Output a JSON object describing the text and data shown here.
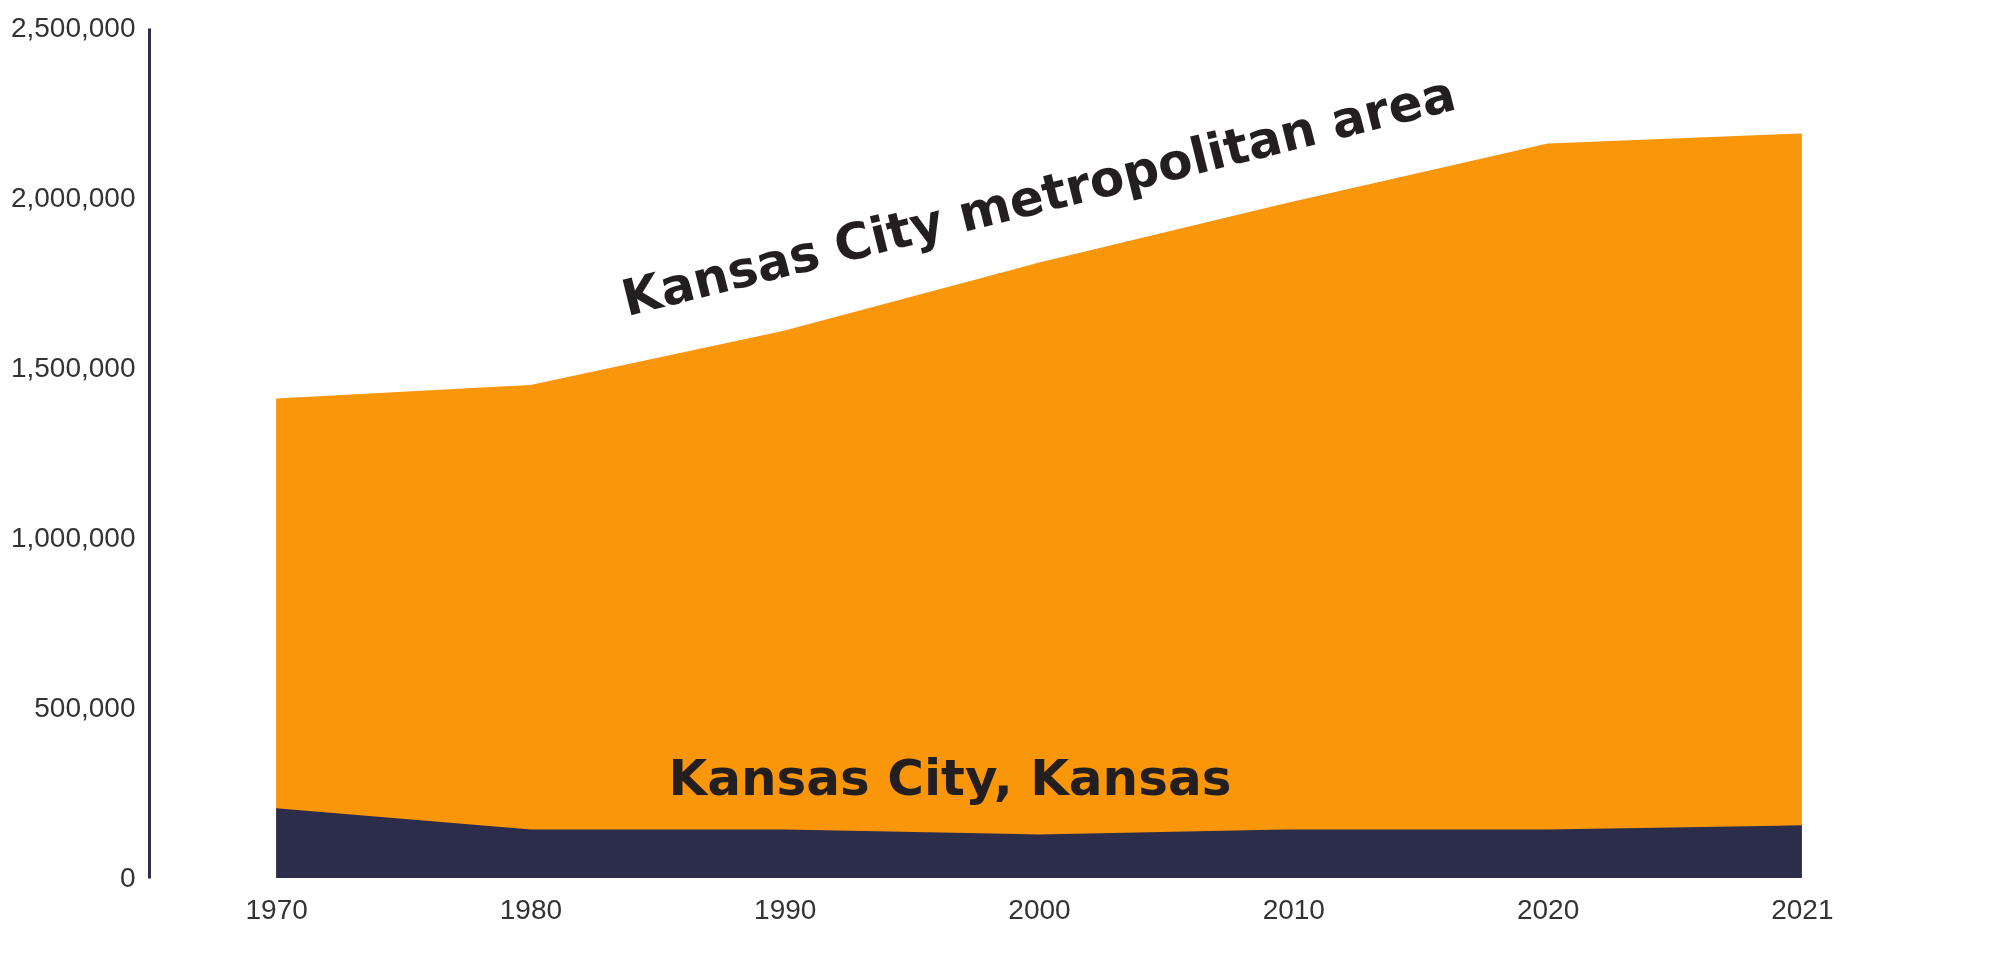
{
  "chart_data": {
    "type": "area",
    "categories": [
      "1970",
      "1980",
      "1990",
      "2000",
      "2010",
      "2020",
      "2021"
    ],
    "series": [
      {
        "name": "Kansas City metropolitan area",
        "color": "#f9960a",
        "values": [
          1410000,
          1450000,
          1610000,
          1810000,
          1990000,
          2160000,
          2190000
        ]
      },
      {
        "name": "Kansas City, Kansas",
        "color": "#2b2d4b",
        "values": [
          205000,
          143000,
          143000,
          128000,
          143000,
          143000,
          155000
        ]
      }
    ],
    "ylim": [
      0,
      2500000
    ],
    "yticks": [
      0,
      {
        "value": 500000,
        "label": "500,000"
      },
      {
        "value": 1000000,
        "label": "1,000,000"
      },
      {
        "value": 1500000,
        "label": "1,500,000"
      },
      {
        "value": 2000000,
        "label": "2,000,000"
      },
      {
        "value": 2500000,
        "label": "2,500,000"
      }
    ],
    "grid": false,
    "legend": false
  }
}
